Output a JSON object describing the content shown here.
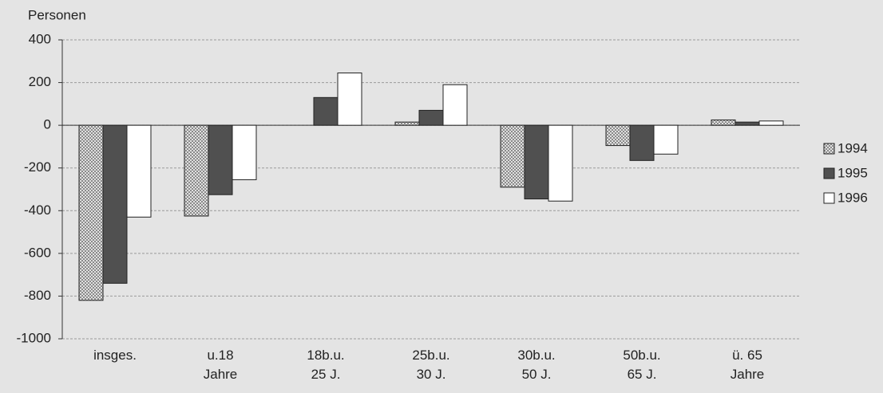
{
  "chart_data": {
    "type": "bar",
    "y_label": "Personen",
    "categories": [
      [
        "insges."
      ],
      [
        "u.18",
        "Jahre"
      ],
      [
        "18b.u.",
        "25 J."
      ],
      [
        "25b.u.",
        "30 J."
      ],
      [
        "30b.u.",
        "50 J."
      ],
      [
        "50b.u.",
        "65 J."
      ],
      [
        "ü. 65",
        "Jahre"
      ]
    ],
    "series": [
      {
        "name": "1994",
        "color": "#b4b4b4",
        "values": [
          -820,
          -425,
          0,
          15,
          -290,
          -95,
          25
        ]
      },
      {
        "name": "1995",
        "color": "#505050",
        "values": [
          -740,
          -325,
          130,
          70,
          -345,
          -165,
          15
        ]
      },
      {
        "name": "1996",
        "color": "#ffffff",
        "values": [
          -430,
          -255,
          245,
          190,
          -355,
          -135,
          20
        ]
      }
    ],
    "ylim": [
      -1000,
      400
    ],
    "yticks": [
      -1000,
      -800,
      -600,
      -400,
      -200,
      0,
      200,
      400
    ],
    "grid": true,
    "legend": "right"
  }
}
